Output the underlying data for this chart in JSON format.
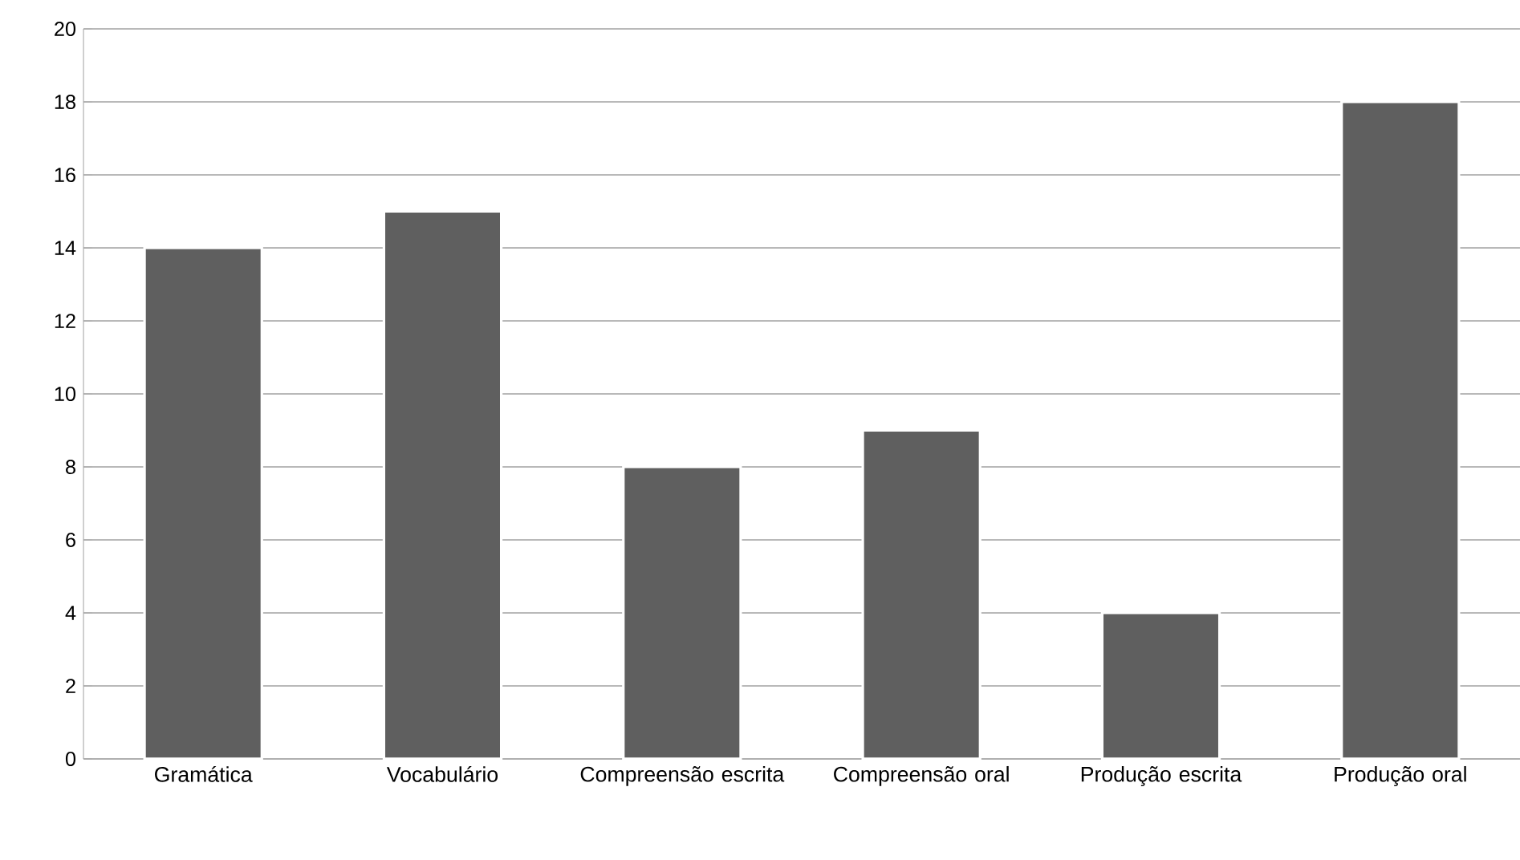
{
  "chart_data": {
    "type": "bar",
    "categories": [
      "Gramática",
      "Vocabulário",
      "Compreensão escrita",
      "Compreensão oral",
      "Produção escrita",
      "Produção oral"
    ],
    "values": [
      14,
      15,
      8,
      9,
      4,
      18
    ],
    "color": "#5f5f5f",
    "ylim": [
      0,
      20
    ],
    "yticks": [
      0,
      2,
      4,
      6,
      8,
      10,
      12,
      14,
      16,
      18,
      20
    ],
    "grid": "y"
  }
}
